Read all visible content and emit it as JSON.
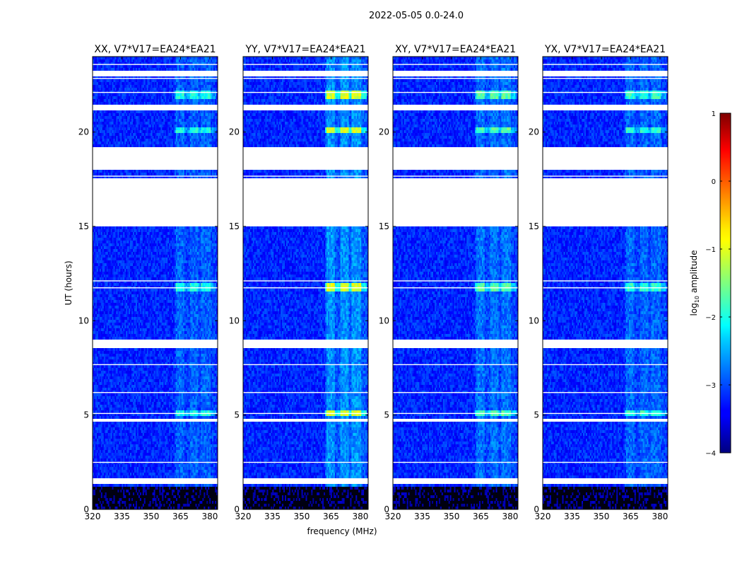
{
  "chart_data": {
    "type": "heatmap",
    "suptitle": "2022-05-05 0.0-24.0",
    "xlabel": "frequency (MHz)",
    "ylabel": "UT (hours)",
    "xlim": [
      320,
      384
    ],
    "ylim": [
      0,
      24
    ],
    "xticks": [
      320,
      335,
      350,
      365,
      380
    ],
    "yticks": [
      0,
      5,
      10,
      15,
      20
    ],
    "panels": [
      {
        "title": "XX, V7*V17=EA24*EA21",
        "brightness": 0.55
      },
      {
        "title": "YY, V7*V17=EA24*EA21",
        "brightness": 1.0
      },
      {
        "title": "XY, V7*V17=EA24*EA21",
        "brightness": 0.7
      },
      {
        "title": "YX, V7*V17=EA24*EA21",
        "brightness": 0.6
      }
    ],
    "colorbar": {
      "label": "log10 amplitude",
      "label_main": "log",
      "label_sub": "10",
      "label_rest": " amplitude",
      "range": [
        -4,
        1
      ],
      "ticks": [
        1,
        0,
        -1,
        -2,
        -3,
        -4
      ],
      "tick_labels": [
        "1",
        "0",
        "−1",
        "−2",
        "−3",
        "−4"
      ],
      "colormap": "jet"
    },
    "background_log_amplitude": -3.2,
    "rfi_channels_mhz": [
      365,
      372,
      378
    ],
    "rfi_band_mhz": [
      362,
      383
    ],
    "flagged_time_ranges_hours": [
      [
        18.0,
        19.2
      ],
      [
        15.0,
        17.6
      ],
      [
        8.6,
        9.0
      ],
      [
        23.0,
        23.3
      ],
      [
        21.2,
        21.5
      ],
      [
        4.6,
        4.8
      ],
      [
        1.4,
        1.6
      ]
    ],
    "strong_rfi_epochs_hours": [
      [
        4.9,
        5.2
      ],
      [
        21.8,
        22.2
      ],
      [
        19.9,
        20.3
      ],
      [
        11.6,
        12.0
      ]
    ]
  }
}
